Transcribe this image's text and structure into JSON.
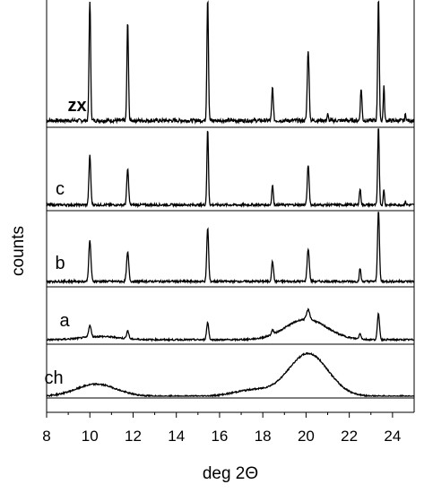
{
  "chart_data": {
    "type": "line",
    "xlabel": "deg 2Θ",
    "ylabel": "counts",
    "xlim": [
      8,
      25
    ],
    "xticks": [
      "8",
      "10",
      "12",
      "14",
      "16",
      "18",
      "20",
      "22",
      "24"
    ],
    "grid": false,
    "legend": "none",
    "line_color": "#000000",
    "series": [
      {
        "name": "zx",
        "bold_label": true,
        "baseline": 0.04,
        "peaks": [
          {
            "x": 10.0,
            "h": 1.0,
            "w": 0.05
          },
          {
            "x": 11.75,
            "h": 0.8,
            "w": 0.05
          },
          {
            "x": 15.45,
            "h": 1.0,
            "w": 0.05
          },
          {
            "x": 18.45,
            "h": 0.27,
            "w": 0.05
          },
          {
            "x": 20.1,
            "h": 0.57,
            "w": 0.06
          },
          {
            "x": 21.0,
            "h": 0.05,
            "w": 0.04
          },
          {
            "x": 22.55,
            "h": 0.26,
            "w": 0.05
          },
          {
            "x": 23.35,
            "h": 1.0,
            "w": 0.05
          },
          {
            "x": 23.6,
            "h": 0.28,
            "w": 0.04
          },
          {
            "x": 24.6,
            "h": 0.05,
            "w": 0.04
          }
        ],
        "humps": []
      },
      {
        "name": "c",
        "bold_label": false,
        "baseline": 0.05,
        "peaks": [
          {
            "x": 10.0,
            "h": 0.62,
            "w": 0.06
          },
          {
            "x": 11.75,
            "h": 0.45,
            "w": 0.06
          },
          {
            "x": 15.45,
            "h": 0.95,
            "w": 0.05
          },
          {
            "x": 18.45,
            "h": 0.25,
            "w": 0.05
          },
          {
            "x": 20.1,
            "h": 0.5,
            "w": 0.06
          },
          {
            "x": 22.5,
            "h": 0.2,
            "w": 0.05
          },
          {
            "x": 23.35,
            "h": 1.0,
            "w": 0.05
          },
          {
            "x": 23.6,
            "h": 0.2,
            "w": 0.04
          },
          {
            "x": 24.6,
            "h": 0.04,
            "w": 0.04
          }
        ],
        "humps": []
      },
      {
        "name": "b",
        "bold_label": false,
        "baseline": 0.05,
        "peaks": [
          {
            "x": 10.0,
            "h": 0.56,
            "w": 0.07
          },
          {
            "x": 11.75,
            "h": 0.4,
            "w": 0.07
          },
          {
            "x": 15.45,
            "h": 0.74,
            "w": 0.06
          },
          {
            "x": 18.45,
            "h": 0.28,
            "w": 0.06
          },
          {
            "x": 20.1,
            "h": 0.45,
            "w": 0.07
          },
          {
            "x": 22.5,
            "h": 0.18,
            "w": 0.05
          },
          {
            "x": 23.35,
            "h": 1.0,
            "w": 0.06
          }
        ],
        "humps": []
      },
      {
        "name": "a",
        "bold_label": false,
        "baseline": 0.05,
        "peaks": [
          {
            "x": 10.0,
            "h": 0.22,
            "w": 0.08
          },
          {
            "x": 11.75,
            "h": 0.15,
            "w": 0.07
          },
          {
            "x": 15.45,
            "h": 0.32,
            "w": 0.07
          },
          {
            "x": 18.45,
            "h": 0.08,
            "w": 0.07
          },
          {
            "x": 20.1,
            "h": 0.18,
            "w": 0.1
          },
          {
            "x": 22.5,
            "h": 0.1,
            "w": 0.07
          },
          {
            "x": 23.35,
            "h": 0.48,
            "w": 0.07
          }
        ],
        "humps": [
          {
            "x": 20.0,
            "h": 0.38,
            "w": 1.35
          },
          {
            "x": 10.5,
            "h": 0.06,
            "w": 1.2
          }
        ]
      },
      {
        "name": "ch",
        "bold_label": false,
        "baseline": 0.0,
        "peaks": [],
        "humps": [
          {
            "x": 10.3,
            "h": 0.24,
            "w": 1.3
          },
          {
            "x": 20.1,
            "h": 0.85,
            "w": 1.3
          },
          {
            "x": 17.5,
            "h": 0.12,
            "w": 1.2
          }
        ]
      }
    ]
  }
}
